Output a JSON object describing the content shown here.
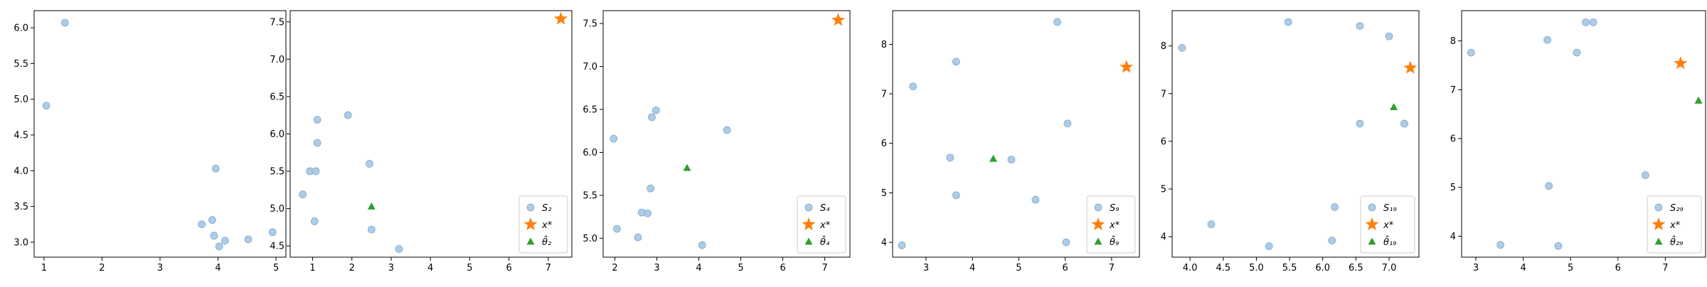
{
  "colors": {
    "sample": "#aecce6",
    "sample_edge": "#7fa9cf",
    "target": "#ff7f0e",
    "estimate": "#2ca02c"
  },
  "chart_data": [
    {
      "type": "scatter",
      "xlim": [
        0.83,
        5.17
      ],
      "ylim": [
        2.79,
        6.24
      ],
      "xticks": [
        1,
        2,
        3,
        4,
        5
      ],
      "yticks": [
        3.0,
        3.5,
        4.0,
        4.5,
        5.0,
        5.5,
        6.0
      ],
      "legend": "none",
      "series": [
        {
          "kind": "sample",
          "points": [
            [
              1.04,
              4.91
            ],
            [
              1.36,
              6.07
            ],
            [
              3.72,
              3.25
            ],
            [
              3.9,
              3.31
            ],
            [
              3.93,
              3.09
            ],
            [
              3.96,
              4.03
            ],
            [
              4.02,
              2.94
            ],
            [
              4.12,
              3.02
            ],
            [
              4.52,
              3.04
            ],
            [
              4.94,
              3.14
            ]
          ]
        }
      ]
    },
    {
      "type": "scatter",
      "xlim": [
        0.43,
        7.6
      ],
      "ylim": [
        4.35,
        7.65
      ],
      "xticks": [
        1,
        2,
        3,
        4,
        5,
        6,
        7
      ],
      "yticks": [
        4.5,
        5.0,
        5.5,
        6.0,
        6.5,
        7.0,
        7.5
      ],
      "legend": "lower right",
      "series": [
        {
          "kind": "sample",
          "name": "S₂",
          "points": [
            [
              0.75,
              5.19
            ],
            [
              0.93,
              5.5
            ],
            [
              1.05,
              4.83
            ],
            [
              1.08,
              5.5
            ],
            [
              1.12,
              6.19
            ],
            [
              1.12,
              5.88
            ],
            [
              1.9,
              6.25
            ],
            [
              2.45,
              5.6
            ],
            [
              2.5,
              4.72
            ],
            [
              3.2,
              4.46
            ]
          ]
        },
        {
          "kind": "target",
          "name": "x*",
          "points": [
            [
              7.32,
              7.54
            ]
          ]
        },
        {
          "kind": "estimate",
          "name": "θ̂₂",
          "points": [
            [
              2.5,
              5.03
            ]
          ]
        }
      ]
    },
    {
      "type": "scatter",
      "xlim": [
        1.72,
        7.6
      ],
      "ylim": [
        4.78,
        7.65
      ],
      "xticks": [
        2,
        3,
        4,
        5,
        6,
        7
      ],
      "yticks": [
        5.0,
        5.5,
        6.0,
        6.5,
        7.0,
        7.5
      ],
      "legend": "lower right",
      "series": [
        {
          "kind": "sample",
          "name": "S₄",
          "points": [
            [
              1.97,
              6.16
            ],
            [
              2.05,
              5.11
            ],
            [
              2.55,
              5.01
            ],
            [
              2.64,
              5.3
            ],
            [
              2.78,
              5.29
            ],
            [
              2.85,
              5.58
            ],
            [
              2.88,
              6.41
            ],
            [
              2.98,
              6.49
            ],
            [
              4.08,
              4.92
            ],
            [
              4.67,
              6.26
            ]
          ]
        },
        {
          "kind": "target",
          "name": "x*",
          "points": [
            [
              7.32,
              7.54
            ]
          ]
        },
        {
          "kind": "estimate",
          "name": "θ̂₄",
          "points": [
            [
              3.72,
              5.82
            ]
          ]
        }
      ]
    },
    {
      "type": "scatter",
      "xlim": [
        2.28,
        7.6
      ],
      "ylim": [
        3.7,
        8.68
      ],
      "xticks": [
        3,
        4,
        5,
        6,
        7
      ],
      "yticks": [
        4,
        5,
        6,
        7,
        8
      ],
      "legend": "lower right",
      "series": [
        {
          "kind": "sample",
          "name": "S₉",
          "points": [
            [
              2.48,
              3.94
            ],
            [
              2.72,
              7.15
            ],
            [
              3.52,
              5.71
            ],
            [
              3.65,
              7.65
            ],
            [
              3.65,
              4.95
            ],
            [
              4.84,
              5.67
            ],
            [
              5.36,
              4.86
            ],
            [
              5.83,
              8.45
            ],
            [
              6.02,
              4.0
            ],
            [
              6.05,
              6.4
            ]
          ]
        },
        {
          "kind": "target",
          "name": "x*",
          "points": [
            [
              7.32,
              7.54
            ]
          ]
        },
        {
          "kind": "estimate",
          "name": "θ̂₉",
          "points": [
            [
              4.45,
              5.69
            ]
          ]
        }
      ]
    },
    {
      "type": "scatter",
      "xlim": [
        3.73,
        7.45
      ],
      "ylim": [
        3.57,
        8.74
      ],
      "xticks": [
        4.0,
        4.5,
        5.0,
        5.5,
        6.0,
        6.5,
        7.0
      ],
      "yticks": [
        4,
        5,
        6,
        7,
        8
      ],
      "legend": "lower right",
      "series": [
        {
          "kind": "sample",
          "name": "S₁₉",
          "points": [
            [
              3.88,
              7.96
            ],
            [
              4.32,
              4.26
            ],
            [
              5.19,
              3.8
            ],
            [
              5.48,
              8.5
            ],
            [
              6.14,
              3.92
            ],
            [
              6.18,
              4.62
            ],
            [
              6.56,
              8.42
            ],
            [
              6.56,
              6.37
            ],
            [
              7.0,
              8.2
            ],
            [
              7.23,
              6.37
            ]
          ]
        },
        {
          "kind": "target",
          "name": "x*",
          "points": [
            [
              7.32,
              7.54
            ]
          ]
        },
        {
          "kind": "estimate",
          "name": "θ̂₁₉",
          "points": [
            [
              7.07,
              6.72
            ]
          ]
        }
      ]
    },
    {
      "type": "scatter",
      "xlim": [
        2.7,
        7.85
      ],
      "ylim": [
        3.57,
        8.62
      ],
      "xticks": [
        3,
        4,
        5,
        6,
        7
      ],
      "yticks": [
        4,
        5,
        6,
        7,
        8
      ],
      "legend": "lower right",
      "series": [
        {
          "kind": "sample",
          "name": "S₂₉",
          "points": [
            [
              2.9,
              7.76
            ],
            [
              3.52,
              3.82
            ],
            [
              4.51,
              8.02
            ],
            [
              4.54,
              5.03
            ],
            [
              4.74,
              3.8
            ],
            [
              5.13,
              7.76
            ],
            [
              5.32,
              8.38
            ],
            [
              5.48,
              8.38
            ],
            [
              6.58,
              5.25
            ]
          ]
        },
        {
          "kind": "target",
          "name": "x*",
          "points": [
            [
              7.32,
              7.54
            ]
          ]
        },
        {
          "kind": "estimate",
          "name": "θ̂₂₉",
          "points": [
            [
              7.7,
              6.78
            ]
          ]
        }
      ]
    }
  ]
}
